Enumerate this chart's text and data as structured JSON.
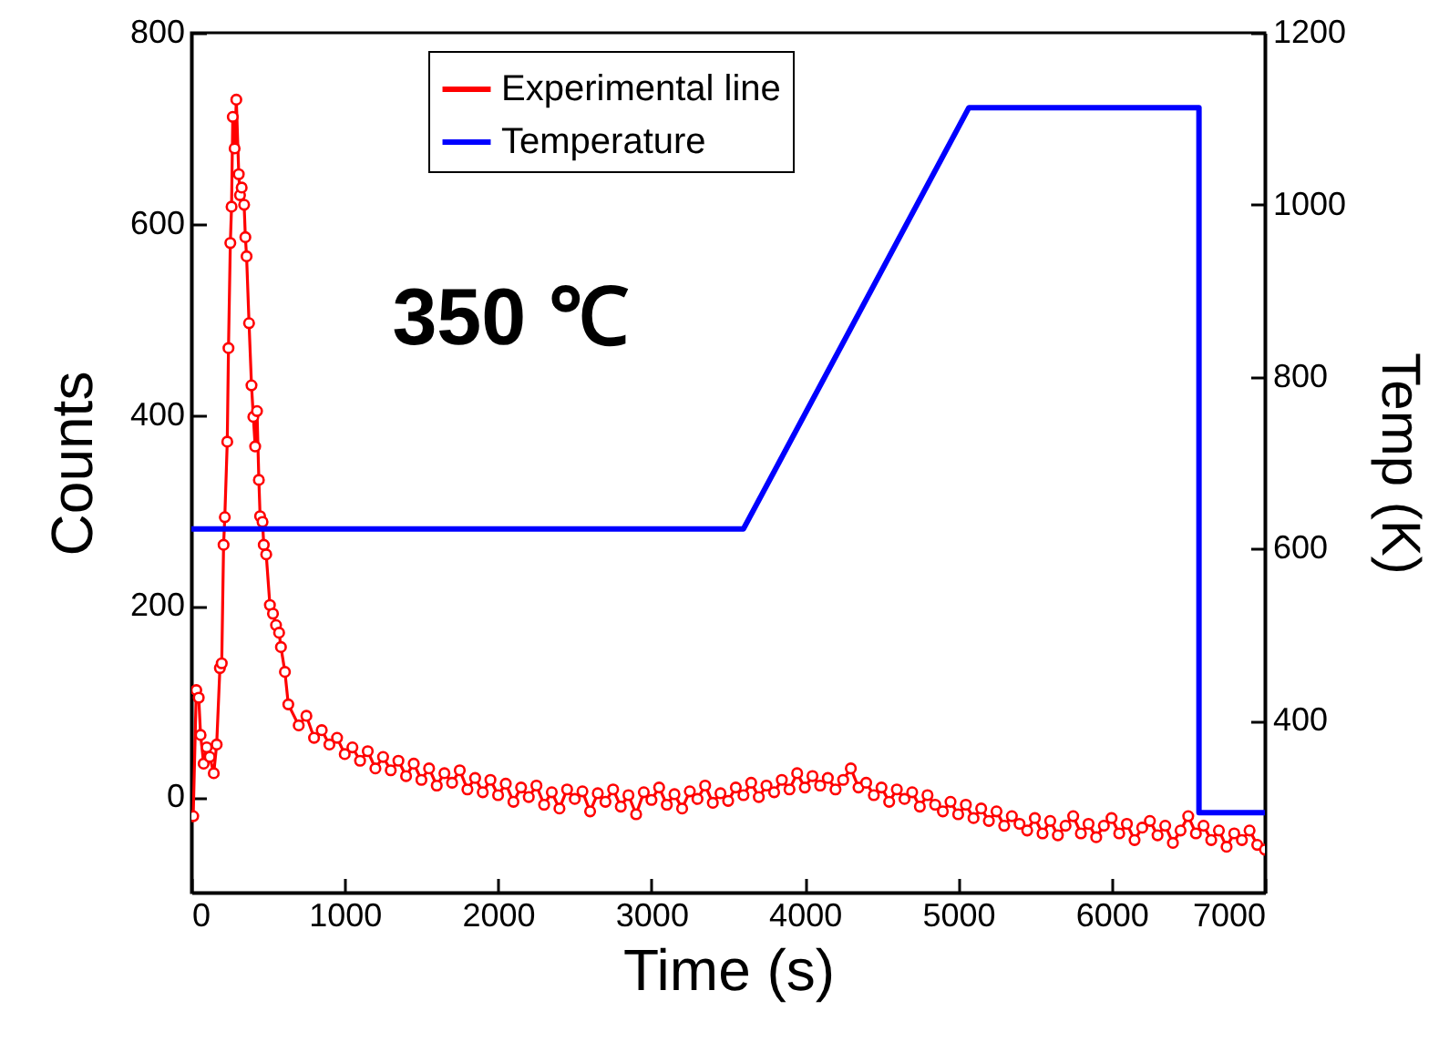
{
  "chart_data": {
    "type": "line",
    "xlabel": "Time (s)",
    "ylabel": "Counts",
    "y2label": "Temp (K)",
    "annotations": [
      "350 ℃"
    ],
    "xlim": [
      0,
      7000
    ],
    "xticks": [
      0,
      1000,
      2000,
      3000,
      4000,
      5000,
      6000,
      7000
    ],
    "ylim": [
      -100,
      800
    ],
    "yticks": [
      0,
      200,
      400,
      600,
      800
    ],
    "y2lim": [
      200,
      1200
    ],
    "y2ticks": [
      400,
      600,
      800,
      1000,
      1200
    ],
    "grid": false,
    "legend": "top",
    "marker": "circle",
    "line_style": "solid",
    "series": [
      {
        "name": "Experimental line",
        "color": "#ff0000",
        "x": [
          12,
          32,
          48,
          60,
          80,
          100,
          120,
          146,
          165,
          186,
          198,
          210,
          218,
          234,
          242,
          254,
          262,
          270,
          282,
          293,
          309,
          317,
          328,
          344,
          352,
          360,
          376,
          392,
          404,
          416,
          428,
          440,
          448,
          464,
          472,
          488,
          512,
          532,
          552,
          572,
          584,
          610,
          632,
          700,
          750,
          800,
          850,
          900,
          950,
          1000,
          1050,
          1100,
          1150,
          1200,
          1250,
          1300,
          1350,
          1400,
          1450,
          1500,
          1550,
          1600,
          1650,
          1700,
          1750,
          1800,
          1850,
          1900,
          1950,
          2000,
          2050,
          2100,
          2150,
          2200,
          2250,
          2300,
          2350,
          2400,
          2450,
          2500,
          2550,
          2600,
          2650,
          2700,
          2750,
          2800,
          2850,
          2900,
          2950,
          3000,
          3050,
          3100,
          3150,
          3200,
          3250,
          3300,
          3350,
          3400,
          3450,
          3500,
          3550,
          3600,
          3650,
          3700,
          3750,
          3800,
          3850,
          3900,
          3950,
          4000,
          4050,
          4100,
          4150,
          4200,
          4250,
          4300,
          4350,
          4400,
          4450,
          4500,
          4550,
          4600,
          4650,
          4700,
          4750,
          4800,
          4850,
          4900,
          4950,
          5000,
          5050,
          5100,
          5150,
          5200,
          5250,
          5300,
          5350,
          5400,
          5450,
          5500,
          5550,
          5600,
          5650,
          5700,
          5750,
          5800,
          5850,
          5900,
          5950,
          6000,
          6050,
          6100,
          6150,
          6200,
          6250,
          6300,
          6350,
          6400,
          6450,
          6500,
          6550,
          6600,
          6650,
          6700,
          6750,
          6800,
          6850,
          6900,
          6950,
          7000
        ],
        "values": [
          -20,
          112,
          104,
          65,
          35,
          52,
          42,
          25,
          55,
          135,
          140,
          264,
          293,
          372,
          470,
          580,
          618,
          712,
          679,
          730,
          652,
          630,
          638,
          620,
          586,
          566,
          496,
          431,
          398,
          367,
          404,
          332,
          294,
          288,
          264,
          254,
          201,
          192,
          180,
          172,
          157,
          131,
          97,
          75,
          85,
          62,
          70,
          55,
          62,
          45,
          52,
          38,
          48,
          30,
          42,
          28,
          38,
          22,
          35,
          18,
          30,
          12,
          25,
          15,
          28,
          8,
          20,
          5,
          18,
          2,
          14,
          -5,
          10,
          0,
          12,
          -8,
          5,
          -12,
          8,
          -2,
          6,
          -15,
          4,
          -5,
          8,
          -10,
          2,
          -18,
          5,
          -3,
          10,
          -8,
          3,
          -12,
          6,
          -2,
          12,
          -6,
          4,
          -4,
          10,
          2,
          15,
          0,
          12,
          5,
          18,
          8,
          25,
          10,
          22,
          12,
          20,
          8,
          18,
          30,
          10,
          15,
          2,
          10,
          -5,
          8,
          -2,
          5,
          -10,
          2,
          -8,
          -15,
          -5,
          -18,
          -8,
          -22,
          -12,
          -25,
          -15,
          -30,
          -20,
          -28,
          -35,
          -22,
          -38,
          -25,
          -40,
          -30,
          -20,
          -38,
          -28,
          -42,
          -30,
          -22,
          -38,
          -28,
          -45,
          -32,
          -25,
          -40,
          -30,
          -48,
          -35,
          -20,
          -38,
          -30,
          -45,
          -35,
          -52,
          -38,
          -45,
          -35,
          -50,
          -55
        ]
      },
      {
        "name": "Temperature",
        "color": "#0000ff",
        "axis": "y2",
        "marker": "none",
        "x": [
          0,
          3600,
          5070,
          6570,
          6570,
          7000
        ],
        "values": [
          623,
          623,
          1113,
          1113,
          293,
          293
        ]
      }
    ]
  }
}
